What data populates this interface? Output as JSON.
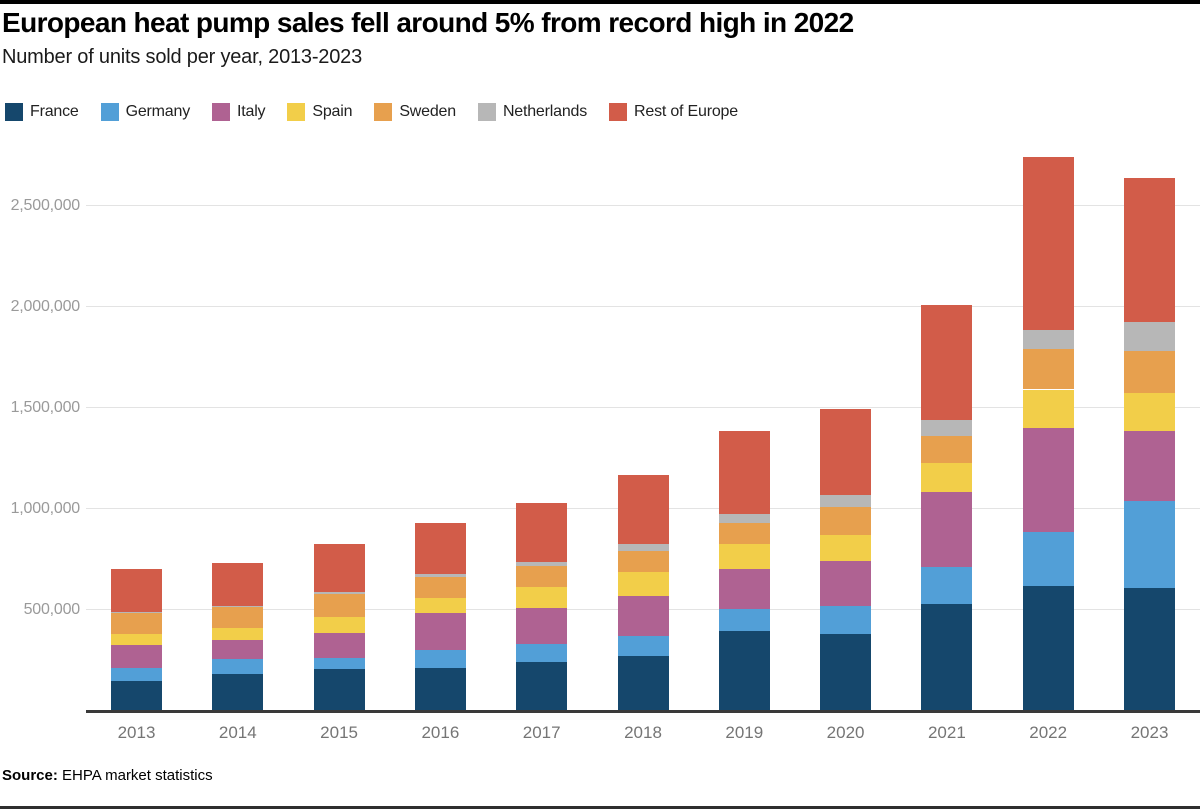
{
  "header": {
    "title": "European heat pump sales fell around 5% from record high in 2022",
    "subtitle": "Number of units sold per year, 2013-2023"
  },
  "footer": {
    "source_label": "Source:",
    "source_text": " EHPA market statistics"
  },
  "colors": {
    "france": "#15476C",
    "germany": "#529FD7",
    "italy": "#AF6292",
    "spain": "#F2CE49",
    "sweden": "#E7A04E",
    "netherlands": "#B7B7B7",
    "rest_of_europe": "#D25C49",
    "gridline": "#e3e3e3",
    "axis_line": "#3a3a3a"
  },
  "chart_data": {
    "type": "bar",
    "stacked": true,
    "title": "European heat pump sales fell around 5% from record high in 2022",
    "subtitle": "Number of units sold per year, 2013-2023",
    "categories": [
      "2013",
      "2014",
      "2015",
      "2016",
      "2017",
      "2018",
      "2019",
      "2020",
      "2021",
      "2022",
      "2023"
    ],
    "series": [
      {
        "name": "France",
        "color": "#15476C",
        "values": [
          149000,
          182000,
          208000,
          215000,
          241000,
          274000,
          394000,
          380000,
          530000,
          620000,
          610000
        ]
      },
      {
        "name": "Germany",
        "color": "#529FD7",
        "values": [
          66000,
          77000,
          56000,
          86000,
          88000,
          95000,
          112000,
          141000,
          180000,
          265000,
          430000
        ]
      },
      {
        "name": "Italy",
        "color": "#AF6292",
        "values": [
          112000,
          91000,
          124000,
          182000,
          182000,
          199000,
          194000,
          223000,
          375000,
          515000,
          345000
        ]
      },
      {
        "name": "Spain",
        "color": "#F2CE49",
        "values": [
          56000,
          62000,
          78000,
          78000,
          103000,
          118000,
          126000,
          128000,
          142000,
          190000,
          190000
        ]
      },
      {
        "name": "Sweden",
        "color": "#E7A04E",
        "values": [
          101000,
          100000,
          113000,
          104000,
          103000,
          106000,
          103000,
          137000,
          133000,
          200000,
          205000
        ]
      },
      {
        "name": "Netherlands",
        "color": "#B7B7B7",
        "values": [
          4000,
          5000,
          8000,
          12000,
          21000,
          33000,
          44000,
          58000,
          78000,
          92000,
          143000
        ]
      },
      {
        "name": "Rest of Europe",
        "color": "#D25C49",
        "values": [
          215000,
          214000,
          240000,
          252000,
          293000,
          343000,
          410000,
          426000,
          570000,
          860000,
          712000
        ]
      }
    ],
    "totals": [
      703000,
      731000,
      827000,
      929000,
      1031000,
      1168000,
      1383000,
      1493000,
      2008000,
      2742000,
      2635000
    ],
    "xlabel": "",
    "ylabel": "",
    "y_ticks": [
      {
        "value": 500000,
        "label": "500,000"
      },
      {
        "value": 1000000,
        "label": "1,000,000"
      },
      {
        "value": 1500000,
        "label": "1,500,000"
      },
      {
        "value": 2000000,
        "label": "2,000,000"
      },
      {
        "value": 2500000,
        "label": "2,500,000"
      }
    ],
    "ylim": [
      0,
      2824000
    ],
    "grid": "horizontal",
    "legend_position": "top",
    "source": "Source: EHPA market statistics"
  }
}
